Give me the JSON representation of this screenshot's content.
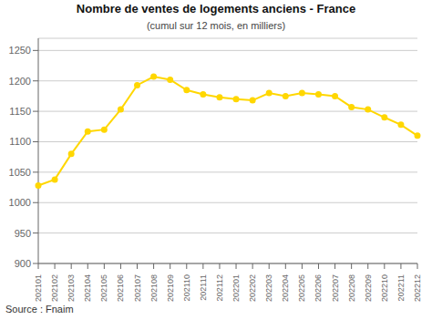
{
  "chart_data": {
    "type": "line",
    "title": "Nombre de ventes de logements anciens - France",
    "subtitle": "(cumul sur 12 mois, en milliers)",
    "annotations": [
      "Source : Fnaim"
    ],
    "categories": [
      "202101",
      "202102",
      "202103",
      "202104",
      "202105",
      "202106",
      "202107",
      "202108",
      "202109",
      "202110",
      "202111",
      "202112",
      "202201",
      "202202",
      "202203",
      "202204",
      "202205",
      "202206",
      "202207",
      "202208",
      "202209",
      "202210",
      "202211",
      "202212"
    ],
    "values": [
      1028,
      1038,
      1080,
      1117,
      1120,
      1153,
      1193,
      1207,
      1202,
      1185,
      1178,
      1173,
      1170,
      1168,
      1180,
      1175,
      1180,
      1178,
      1175,
      1157,
      1153,
      1140,
      1128,
      1110
    ],
    "color": "#FFD700",
    "marker": "o",
    "ylim": [
      900,
      1270
    ],
    "yticks": [
      900,
      950,
      1000,
      1050,
      1100,
      1150,
      1200,
      1250
    ],
    "grid": true
  }
}
